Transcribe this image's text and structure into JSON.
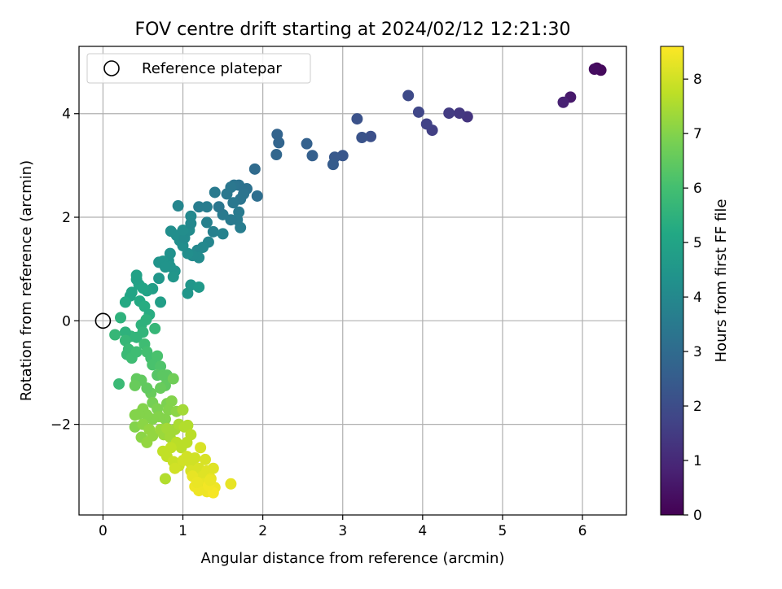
{
  "chart_data": {
    "type": "scatter",
    "title": "FOV centre drift starting at 2024/02/12 12:21:30",
    "xlabel": "Angular distance from reference (arcmin)",
    "ylabel": "Rotation from reference (arcmin)",
    "xlim": [
      -0.3,
      6.55
    ],
    "ylim": [
      -3.75,
      5.3
    ],
    "xticks": [
      0,
      1,
      2,
      3,
      4,
      5,
      6
    ],
    "yticks": [
      -2,
      0,
      2,
      4
    ],
    "xtick_labels": [
      "0",
      "1",
      "2",
      "3",
      "4",
      "5",
      "6"
    ],
    "ytick_labels": [
      "−2",
      "0",
      "2",
      "4"
    ],
    "grid": true,
    "legend": {
      "placement": "top-left",
      "label": "Reference platepar"
    },
    "reference_point": {
      "x": 0,
      "y": 0
    },
    "colorbar": {
      "label": "Hours from first FF file",
      "range": [
        0,
        8.6
      ],
      "ticks": [
        0,
        1,
        2,
        3,
        4,
        5,
        6,
        7,
        8
      ],
      "colormap": "viridis"
    },
    "points": [
      [
        6.18,
        4.88,
        0.1
      ],
      [
        6.23,
        4.84,
        0.2
      ],
      [
        6.15,
        4.86,
        0.3
      ],
      [
        5.85,
        4.32,
        0.6
      ],
      [
        5.76,
        4.22,
        0.8
      ],
      [
        4.56,
        3.94,
        1.3
      ],
      [
        4.46,
        4.01,
        1.4
      ],
      [
        4.33,
        4.01,
        1.5
      ],
      [
        4.12,
        3.68,
        1.6
      ],
      [
        4.05,
        3.8,
        1.7
      ],
      [
        3.95,
        4.03,
        1.8
      ],
      [
        3.82,
        4.35,
        1.9
      ],
      [
        3.35,
        3.56,
        2.1
      ],
      [
        3.24,
        3.54,
        2.2
      ],
      [
        3.18,
        3.9,
        2.15
      ],
      [
        3.0,
        3.19,
        2.3
      ],
      [
        2.9,
        3.16,
        2.4
      ],
      [
        2.88,
        3.02,
        2.5
      ],
      [
        2.62,
        3.19,
        2.6
      ],
      [
        2.55,
        3.42,
        2.65
      ],
      [
        2.2,
        3.44,
        2.8
      ],
      [
        2.18,
        3.6,
        2.75
      ],
      [
        2.17,
        3.21,
        2.85
      ],
      [
        1.93,
        2.41,
        3.1
      ],
      [
        1.9,
        2.93,
        3.0
      ],
      [
        1.8,
        2.55,
        3.2
      ],
      [
        1.76,
        2.45,
        3.3
      ],
      [
        1.72,
        2.35,
        3.35
      ],
      [
        1.7,
        2.62,
        3.25
      ],
      [
        1.64,
        2.62,
        3.3
      ],
      [
        1.6,
        2.58,
        3.4
      ],
      [
        1.63,
        2.28,
        3.45
      ],
      [
        1.7,
        2.1,
        3.5
      ],
      [
        1.72,
        1.8,
        3.6
      ],
      [
        1.68,
        1.95,
        3.55
      ],
      [
        1.6,
        1.95,
        3.5
      ],
      [
        1.55,
        2.45,
        3.45
      ],
      [
        1.5,
        2.05,
        3.5
      ],
      [
        1.45,
        2.2,
        3.4
      ],
      [
        1.4,
        2.48,
        3.5
      ],
      [
        1.3,
        2.2,
        3.6
      ],
      [
        1.2,
        2.2,
        3.6
      ],
      [
        1.3,
        1.9,
        3.7
      ],
      [
        1.38,
        1.72,
        3.7
      ],
      [
        1.5,
        1.68,
        3.8
      ],
      [
        1.32,
        1.52,
        3.9
      ],
      [
        1.25,
        1.42,
        4.0
      ],
      [
        1.18,
        1.36,
        4.0
      ],
      [
        1.2,
        1.22,
        4.1
      ],
      [
        1.12,
        1.26,
        4.1
      ],
      [
        1.06,
        1.3,
        4.2
      ],
      [
        1.0,
        1.45,
        4.2
      ],
      [
        0.96,
        1.55,
        4.2
      ],
      [
        0.92,
        1.65,
        4.2
      ],
      [
        1.02,
        1.6,
        4.1
      ],
      [
        1.08,
        1.75,
        4.1
      ],
      [
        1.0,
        1.75,
        4.15
      ],
      [
        1.1,
        1.88,
        4.0
      ],
      [
        1.1,
        2.02,
        4.0
      ],
      [
        0.94,
        2.22,
        3.9
      ],
      [
        0.85,
        1.73,
        4.2
      ],
      [
        0.84,
        1.3,
        4.3
      ],
      [
        0.82,
        1.16,
        4.3
      ],
      [
        0.75,
        1.15,
        4.4
      ],
      [
        0.7,
        1.13,
        4.4
      ],
      [
        0.84,
        1.05,
        4.4
      ],
      [
        0.9,
        0.96,
        4.4
      ],
      [
        0.88,
        0.85,
        4.5
      ],
      [
        0.78,
        1.04,
        4.4
      ],
      [
        0.7,
        0.82,
        4.5
      ],
      [
        1.06,
        0.53,
        4.5
      ],
      [
        1.1,
        0.69,
        4.5
      ],
      [
        1.2,
        0.65,
        4.6
      ],
      [
        0.72,
        0.36,
        4.8
      ],
      [
        0.62,
        0.62,
        4.8
      ],
      [
        0.55,
        0.58,
        4.9
      ],
      [
        0.5,
        0.63,
        5.0
      ],
      [
        0.45,
        0.7,
        5.0
      ],
      [
        0.42,
        0.8,
        4.9
      ],
      [
        0.42,
        0.88,
        4.9
      ],
      [
        0.36,
        0.55,
        5.0
      ],
      [
        0.34,
        0.48,
        5.0
      ],
      [
        0.28,
        0.36,
        5.2
      ],
      [
        0.46,
        0.38,
        5.2
      ],
      [
        0.52,
        0.28,
        5.3
      ],
      [
        0.58,
        0.12,
        5.3
      ],
      [
        0.54,
        0.02,
        5.5
      ],
      [
        0.48,
        -0.08,
        5.5
      ],
      [
        0.5,
        -0.22,
        5.6
      ],
      [
        0.42,
        -0.32,
        5.6
      ],
      [
        0.35,
        -0.3,
        5.6
      ],
      [
        0.28,
        -0.22,
        5.5
      ],
      [
        0.22,
        0.06,
        5.5
      ],
      [
        0.15,
        -0.27,
        5.7
      ],
      [
        0.28,
        -0.38,
        5.7
      ],
      [
        0.32,
        -0.55,
        5.8
      ],
      [
        0.3,
        -0.65,
        5.8
      ],
      [
        0.36,
        -0.72,
        5.9
      ],
      [
        0.42,
        -0.6,
        5.9
      ],
      [
        0.52,
        -0.45,
        5.9
      ],
      [
        0.55,
        -0.6,
        6.0
      ],
      [
        0.6,
        -0.72,
        6.0
      ],
      [
        0.65,
        -0.15,
        5.7
      ],
      [
        0.62,
        -0.85,
        6.1
      ],
      [
        0.68,
        -0.68,
        6.1
      ],
      [
        0.72,
        -0.88,
        6.2
      ],
      [
        0.68,
        -1.05,
        6.3
      ],
      [
        0.75,
        -1.05,
        6.4
      ],
      [
        0.8,
        -1.05,
        6.4
      ],
      [
        0.78,
        -1.25,
        6.5
      ],
      [
        0.72,
        -1.3,
        6.6
      ],
      [
        0.6,
        -1.4,
        6.6
      ],
      [
        0.55,
        -1.3,
        6.5
      ],
      [
        0.62,
        -1.58,
        6.8
      ],
      [
        0.68,
        -1.7,
        6.9
      ],
      [
        0.48,
        -1.15,
        6.5
      ],
      [
        0.42,
        -1.12,
        6.5
      ],
      [
        0.4,
        -1.25,
        6.6
      ],
      [
        0.2,
        -1.22,
        5.8
      ],
      [
        0.88,
        -1.12,
        6.7
      ],
      [
        0.8,
        -1.6,
        6.9
      ],
      [
        0.78,
        -1.9,
        7.0
      ],
      [
        0.82,
        -1.72,
        7.0
      ],
      [
        0.86,
        -1.55,
        7.0
      ],
      [
        0.92,
        -1.75,
        7.1
      ],
      [
        0.7,
        -1.85,
        7.0
      ],
      [
        0.62,
        -1.9,
        7.0
      ],
      [
        0.55,
        -1.82,
        7.0
      ],
      [
        0.5,
        -1.7,
        7.0
      ],
      [
        0.45,
        -1.8,
        7.0
      ],
      [
        0.4,
        -1.82,
        7.0
      ],
      [
        0.4,
        -2.05,
        7.0
      ],
      [
        0.5,
        -2.0,
        7.1
      ],
      [
        0.48,
        -2.25,
        7.1
      ],
      [
        0.55,
        -2.35,
        7.2
      ],
      [
        0.58,
        -2.1,
        7.2
      ],
      [
        0.62,
        -2.22,
        7.2
      ],
      [
        0.72,
        -2.1,
        7.3
      ],
      [
        0.76,
        -2.2,
        7.3
      ],
      [
        0.8,
        -2.08,
        7.4
      ],
      [
        0.84,
        -2.25,
        7.4
      ],
      [
        0.9,
        -2.1,
        7.4
      ],
      [
        0.95,
        -2.0,
        7.5
      ],
      [
        1.0,
        -1.72,
        7.4
      ],
      [
        1.02,
        -2.05,
        7.6
      ],
      [
        1.06,
        -2.02,
        7.6
      ],
      [
        1.1,
        -2.2,
        7.7
      ],
      [
        1.05,
        -2.35,
        7.7
      ],
      [
        0.98,
        -2.45,
        7.7
      ],
      [
        0.92,
        -2.35,
        7.7
      ],
      [
        0.85,
        -2.45,
        7.8
      ],
      [
        0.75,
        -2.52,
        7.8
      ],
      [
        0.8,
        -2.62,
        7.8
      ],
      [
        0.88,
        -2.72,
        7.9
      ],
      [
        0.95,
        -2.8,
        7.9
      ],
      [
        0.9,
        -2.85,
        8.0
      ],
      [
        1.0,
        -2.7,
        8.0
      ],
      [
        1.05,
        -2.62,
        8.0
      ],
      [
        1.1,
        -2.75,
        8.0
      ],
      [
        1.15,
        -2.65,
        8.0
      ],
      [
        1.22,
        -2.45,
        8.1
      ],
      [
        1.1,
        -2.9,
        8.1
      ],
      [
        1.2,
        -2.85,
        8.1
      ],
      [
        1.28,
        -2.68,
        8.1
      ],
      [
        1.3,
        -2.9,
        8.2
      ],
      [
        1.25,
        -3.0,
        8.2
      ],
      [
        1.35,
        -3.05,
        8.3
      ],
      [
        1.38,
        -2.85,
        8.2
      ],
      [
        1.25,
        -3.15,
        8.3
      ],
      [
        1.15,
        -3.2,
        8.4
      ],
      [
        1.2,
        -3.28,
        8.4
      ],
      [
        1.3,
        -3.3,
        8.4
      ],
      [
        1.4,
        -3.22,
        8.4
      ],
      [
        1.38,
        -3.32,
        8.5
      ],
      [
        1.6,
        -3.15,
        8.3
      ],
      [
        0.78,
        -3.05,
        7.6
      ],
      [
        1.12,
        -3.0,
        8.3
      ],
      [
        1.18,
        -3.12,
        8.35
      ],
      [
        1.32,
        -3.18,
        8.45
      ],
      [
        1.34,
        -3.08,
        8.35
      ]
    ]
  }
}
